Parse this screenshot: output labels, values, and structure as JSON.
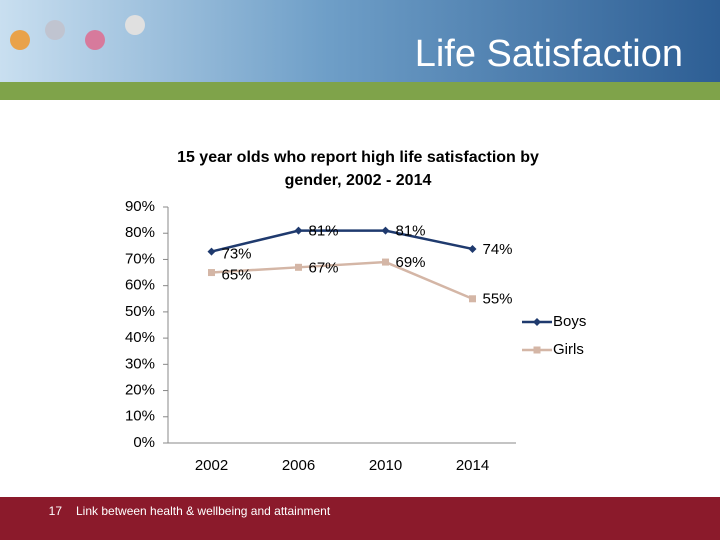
{
  "slide_title": "Life Satisfaction",
  "footer": {
    "page_number": "17",
    "text": "Link between health & wellbeing and attainment"
  },
  "chart_data": {
    "type": "line",
    "title": "15 year olds who report high life satisfaction by gender,  2002 - 2014",
    "categories": [
      "2002",
      "2006",
      "2010",
      "2014"
    ],
    "series": [
      {
        "name": "Boys",
        "color": "#1f3a6e",
        "marker": "diamond",
        "values": [
          73,
          81,
          81,
          74
        ],
        "value_labels": [
          "73%",
          "81%",
          "81%",
          "74%"
        ]
      },
      {
        "name": "Girls",
        "color": "#d4b6a6",
        "marker": "square",
        "values": [
          65,
          67,
          69,
          55
        ],
        "value_labels": [
          "65%",
          "67%",
          "69%",
          "55%"
        ]
      }
    ],
    "ylim": [
      0,
      90
    ],
    "yticks": [
      {
        "value": 0,
        "label": "0%"
      },
      {
        "value": 10,
        "label": "10%"
      },
      {
        "value": 20,
        "label": "20%"
      },
      {
        "value": 30,
        "label": "30%"
      },
      {
        "value": 40,
        "label": "40%"
      },
      {
        "value": 50,
        "label": "50%"
      },
      {
        "value": 60,
        "label": "60%"
      },
      {
        "value": 70,
        "label": "70%"
      },
      {
        "value": 80,
        "label": "80%"
      },
      {
        "value": 90,
        "label": "90%"
      }
    ],
    "grid": false,
    "legend": "right"
  }
}
